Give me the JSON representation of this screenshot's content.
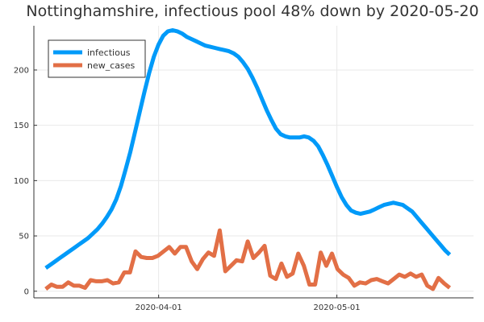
{
  "chart_data": {
    "type": "line",
    "title": "Nottinghamshire, infectious pool 48% down by 2020-05-20",
    "xlabel": "",
    "ylabel": "",
    "x_start": "2020-03-13",
    "x_end": "2020-05-20",
    "xlim": [
      "2020-03-11",
      "2020-05-24"
    ],
    "ylim": [
      -6,
      240
    ],
    "x_ticks": [
      "2020-04-01",
      "2020-05-01"
    ],
    "y_ticks": [
      0,
      50,
      100,
      150,
      200
    ],
    "grid": true,
    "legend_position": "top-left",
    "series": [
      {
        "name": "infectious",
        "color": "#009af9",
        "values": [
          21,
          24,
          27,
          30,
          33,
          36,
          39,
          42,
          45,
          48,
          52,
          56,
          61,
          67,
          74,
          83,
          95,
          110,
          126,
          144,
          162,
          180,
          197,
          212,
          223,
          231,
          235,
          236,
          235,
          233,
          230,
          228,
          226,
          224,
          222,
          221,
          220,
          219,
          218,
          217,
          215,
          212,
          207,
          201,
          193,
          184,
          174,
          164,
          155,
          147,
          142,
          140,
          139,
          139,
          139,
          140,
          139,
          136,
          131,
          123,
          114,
          104,
          94,
          85,
          78,
          73,
          71,
          70,
          71,
          72,
          74,
          76,
          78,
          79,
          80,
          79,
          78,
          75,
          72,
          67,
          62,
          57,
          52,
          47,
          42,
          37,
          33
        ]
      },
      {
        "name": "new_cases",
        "color": "#e26f46",
        "values": [
          2,
          6,
          4,
          4,
          8,
          5,
          5,
          3,
          10,
          9,
          9,
          10,
          7,
          8,
          17,
          17,
          36,
          31,
          30,
          30,
          32,
          36,
          40,
          34,
          40,
          40,
          27,
          20,
          29,
          35,
          32,
          55,
          18,
          23,
          28,
          27,
          45,
          30,
          35,
          41,
          14,
          11,
          25,
          13,
          16,
          34,
          23,
          6,
          6,
          35,
          23,
          34,
          20,
          15,
          12,
          5,
          8,
          7,
          10,
          11,
          9,
          7,
          11,
          15,
          13,
          16,
          13,
          15,
          5,
          2,
          12,
          7,
          3
        ]
      }
    ]
  }
}
